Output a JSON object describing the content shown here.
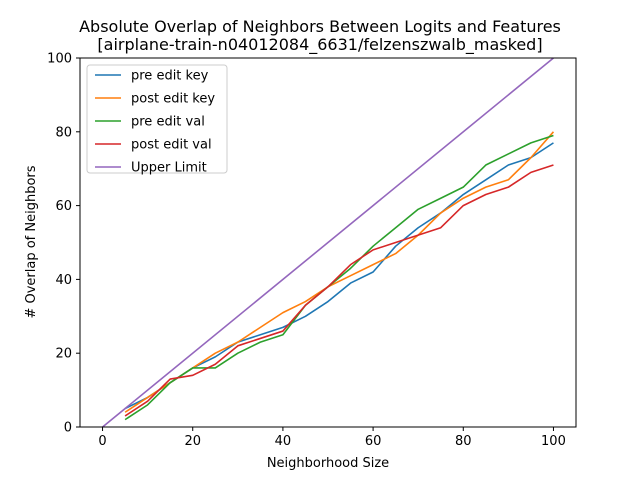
{
  "chart_data": {
    "type": "line",
    "title": "Absolute Overlap of Neighbors Between Logits and Features",
    "subtitle": "[airplane-train-n04012084_6631/felzenszwalb_masked]",
    "xlabel": "Neighborhood Size",
    "ylabel": "# Overlap of Neighbors",
    "xlim": [
      -5,
      105
    ],
    "ylim": [
      0,
      100
    ],
    "xticks": [
      0,
      20,
      40,
      60,
      80,
      100
    ],
    "yticks": [
      0,
      20,
      40,
      60,
      80,
      100
    ],
    "grid": false,
    "legend_position": "top-left",
    "x": [
      5,
      10,
      15,
      20,
      25,
      30,
      35,
      40,
      45,
      50,
      55,
      60,
      65,
      70,
      75,
      80,
      85,
      90,
      95,
      100
    ],
    "series": [
      {
        "name": "pre edit key",
        "color": "#1f77b4",
        "values": [
          5,
          8,
          12,
          16,
          19,
          23,
          25,
          27,
          30,
          34,
          39,
          42,
          49,
          54,
          58,
          63,
          67,
          71,
          73,
          77
        ]
      },
      {
        "name": "post edit key",
        "color": "#ff7f0e",
        "values": [
          4,
          8,
          12,
          16,
          20,
          23,
          27,
          31,
          34,
          38,
          41,
          44,
          47,
          52,
          58,
          62,
          65,
          67,
          73,
          80
        ]
      },
      {
        "name": "pre edit val",
        "color": "#2ca02c",
        "values": [
          2,
          6,
          12,
          16,
          16,
          20,
          23,
          25,
          33,
          38,
          43,
          49,
          54,
          59,
          62,
          65,
          71,
          74,
          77,
          79
        ]
      },
      {
        "name": "post edit val",
        "color": "#d62728",
        "values": [
          3,
          7,
          13,
          14,
          17,
          22,
          24,
          26,
          33,
          38,
          44,
          48,
          50,
          52,
          54,
          60,
          63,
          65,
          69,
          71
        ]
      },
      {
        "name": "Upper Limit",
        "color": "#9467bd",
        "x": [
          0,
          100
        ],
        "values": [
          0,
          100
        ]
      }
    ]
  }
}
